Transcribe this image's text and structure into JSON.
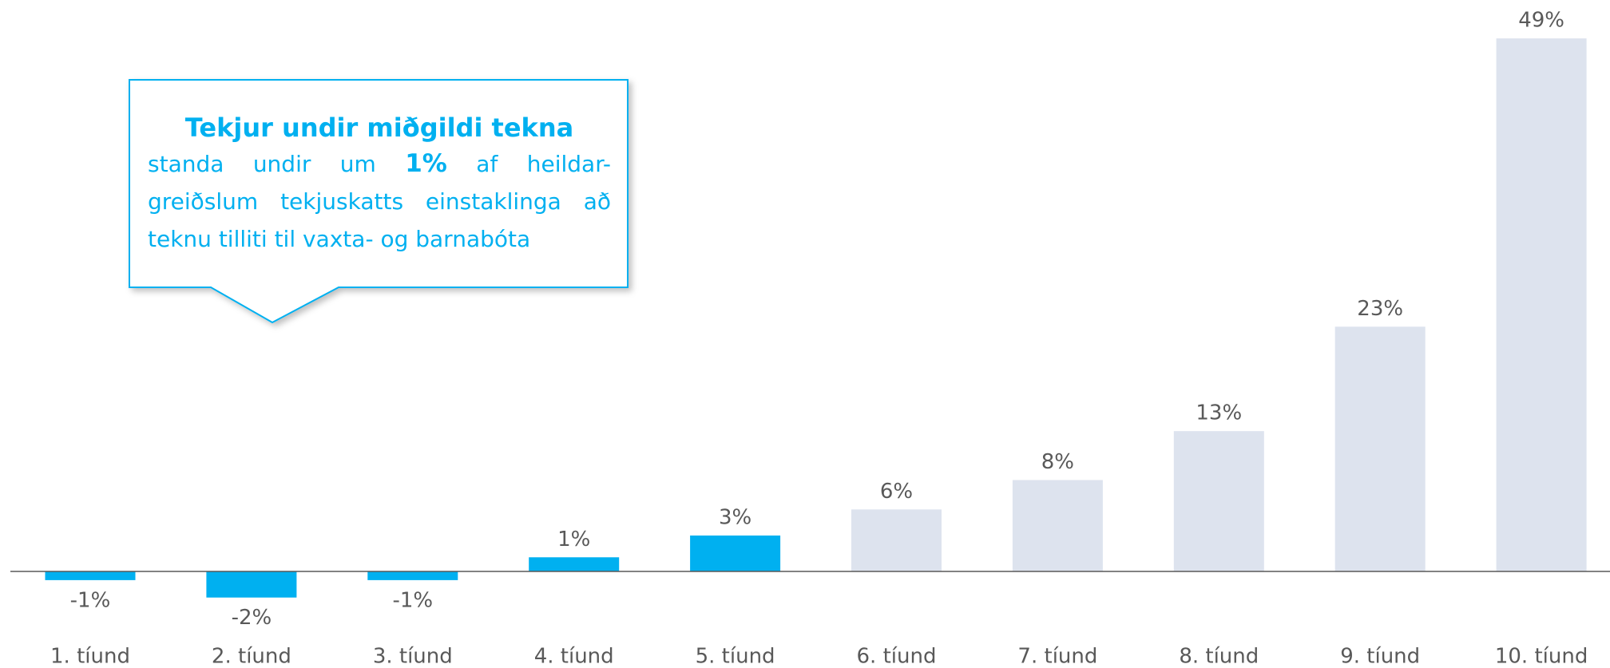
{
  "chart_data": {
    "type": "bar",
    "categories": [
      "1. tíund",
      "2. tíund",
      "3. tíund",
      "4. tíund",
      "5. tíund",
      "6. tíund",
      "7. tíund",
      "8. tíund",
      "9. tíund",
      "10. tíund"
    ],
    "values": [
      -0.8,
      -2.4,
      -0.8,
      1.3,
      3.3,
      5.7,
      8.4,
      12.9,
      22.5,
      49
    ],
    "value_labels": [
      "-1%",
      "-2%",
      "-1%",
      "1%",
      "3%",
      "6%",
      "8%",
      "13%",
      "23%",
      "49%"
    ],
    "colors": [
      "#00b0f0",
      "#00b0f0",
      "#00b0f0",
      "#00b0f0",
      "#00b0f0",
      "#dde3ee",
      "#dde3ee",
      "#dde3ee",
      "#dde3ee",
      "#dde3ee"
    ],
    "annotation": {
      "title": "Tekjur undir miðgildi tekna",
      "text_before": "standa undir um",
      "emphasis": "1%",
      "text_after": "af heildar-greiðslum tekjuskatts einstaklinga að teknu tilliti til vaxta- og barnabóta"
    }
  }
}
